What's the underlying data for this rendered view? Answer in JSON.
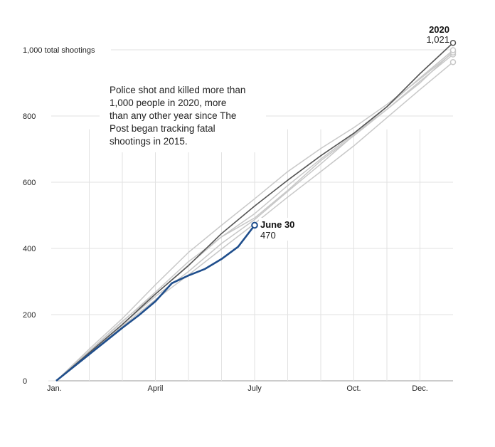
{
  "chart_data": {
    "type": "line",
    "title": "",
    "xlabel": "",
    "ylabel": "",
    "ylim": [
      0,
      1000
    ],
    "xlim": [
      0,
      12
    ],
    "x_ticks": [
      {
        "label": "Jan.",
        "x": 0
      },
      {
        "label": "April",
        "x": 3
      },
      {
        "label": "July",
        "x": 6
      },
      {
        "label": "Oct.",
        "x": 9
      },
      {
        "label": "Dec.",
        "x": 11
      }
    ],
    "y_ticks": [
      {
        "label": "0",
        "y": 0
      },
      {
        "label": "200",
        "y": 200
      },
      {
        "label": "400",
        "y": 400
      },
      {
        "label": "600",
        "y": 600
      },
      {
        "label": "800",
        "y": 800
      },
      {
        "label": "1,000 total shootings",
        "y": 1000
      }
    ],
    "annotation": [
      "Police shot and killed more than",
      "1,000 people in 2020, more",
      "than any other year since The",
      "Post began tracking fatal",
      "shootings in 2015."
    ],
    "callouts": {
      "year_2020": {
        "label": "2020",
        "value": "1,021"
      },
      "current": {
        "label": "June 30",
        "value": "470"
      }
    },
    "colors": {
      "current_year": "#1f4e8c",
      "year_2020": "#555555",
      "other_years": "#c8c8c8",
      "grid": "#e2e2e2"
    },
    "series": [
      {
        "id": "y2015",
        "values": [
          [
            0,
            0
          ],
          [
            1,
            90
          ],
          [
            2,
            180
          ],
          [
            3,
            262
          ],
          [
            4,
            350
          ],
          [
            5,
            435
          ],
          [
            6,
            505
          ],
          [
            7,
            590
          ],
          [
            8,
            670
          ],
          [
            9,
            745
          ],
          [
            10,
            820
          ],
          [
            11,
            900
          ],
          [
            12,
            995
          ]
        ]
      },
      {
        "id": "y2016",
        "values": [
          [
            0,
            0
          ],
          [
            1,
            82
          ],
          [
            2,
            165
          ],
          [
            3,
            245
          ],
          [
            4,
            320
          ],
          [
            5,
            398
          ],
          [
            6,
            475
          ],
          [
            7,
            555
          ],
          [
            8,
            632
          ],
          [
            9,
            710
          ],
          [
            10,
            795
          ],
          [
            11,
            880
          ],
          [
            12,
            963
          ]
        ]
      },
      {
        "id": "y2017",
        "values": [
          [
            0,
            0
          ],
          [
            1,
            88
          ],
          [
            2,
            178
          ],
          [
            3,
            268
          ],
          [
            4,
            360
          ],
          [
            5,
            435
          ],
          [
            6,
            492
          ],
          [
            7,
            575
          ],
          [
            8,
            665
          ],
          [
            9,
            740
          ],
          [
            10,
            820
          ],
          [
            11,
            905
          ],
          [
            12,
            986
          ]
        ]
      },
      {
        "id": "y2018",
        "values": [
          [
            0,
            0
          ],
          [
            1,
            96
          ],
          [
            2,
            188
          ],
          [
            3,
            290
          ],
          [
            4,
            388
          ],
          [
            5,
            470
          ],
          [
            6,
            550
          ],
          [
            7,
            632
          ],
          [
            8,
            702
          ],
          [
            9,
            765
          ],
          [
            10,
            835
          ],
          [
            11,
            912
          ],
          [
            12,
            992
          ]
        ]
      },
      {
        "id": "y2019",
        "values": [
          [
            0,
            0
          ],
          [
            1,
            84
          ],
          [
            2,
            170
          ],
          [
            3,
            255
          ],
          [
            4,
            330
          ],
          [
            5,
            415
          ],
          [
            6,
            487
          ],
          [
            7,
            572
          ],
          [
            8,
            655
          ],
          [
            9,
            742
          ],
          [
            10,
            828
          ],
          [
            11,
            915
          ],
          [
            12,
            999
          ]
        ]
      },
      {
        "id": "y2020",
        "name": "2020",
        "values": [
          [
            0,
            0
          ],
          [
            1,
            85
          ],
          [
            2,
            170
          ],
          [
            3,
            262
          ],
          [
            4,
            348
          ],
          [
            5,
            445
          ],
          [
            6,
            528
          ],
          [
            7,
            606
          ],
          [
            8,
            680
          ],
          [
            9,
            748
          ],
          [
            10,
            828
          ],
          [
            11,
            928
          ],
          [
            12,
            1021
          ]
        ]
      },
      {
        "id": "y2021",
        "name": "June 30",
        "values": [
          [
            0,
            0
          ],
          [
            0.5,
            40
          ],
          [
            1,
            80
          ],
          [
            1.5,
            120
          ],
          [
            2,
            160
          ],
          [
            2.5,
            198
          ],
          [
            3,
            240
          ],
          [
            3.5,
            295
          ],
          [
            4,
            318
          ],
          [
            4.5,
            338
          ],
          [
            5,
            368
          ],
          [
            5.5,
            405
          ],
          [
            6,
            470
          ]
        ]
      }
    ]
  }
}
